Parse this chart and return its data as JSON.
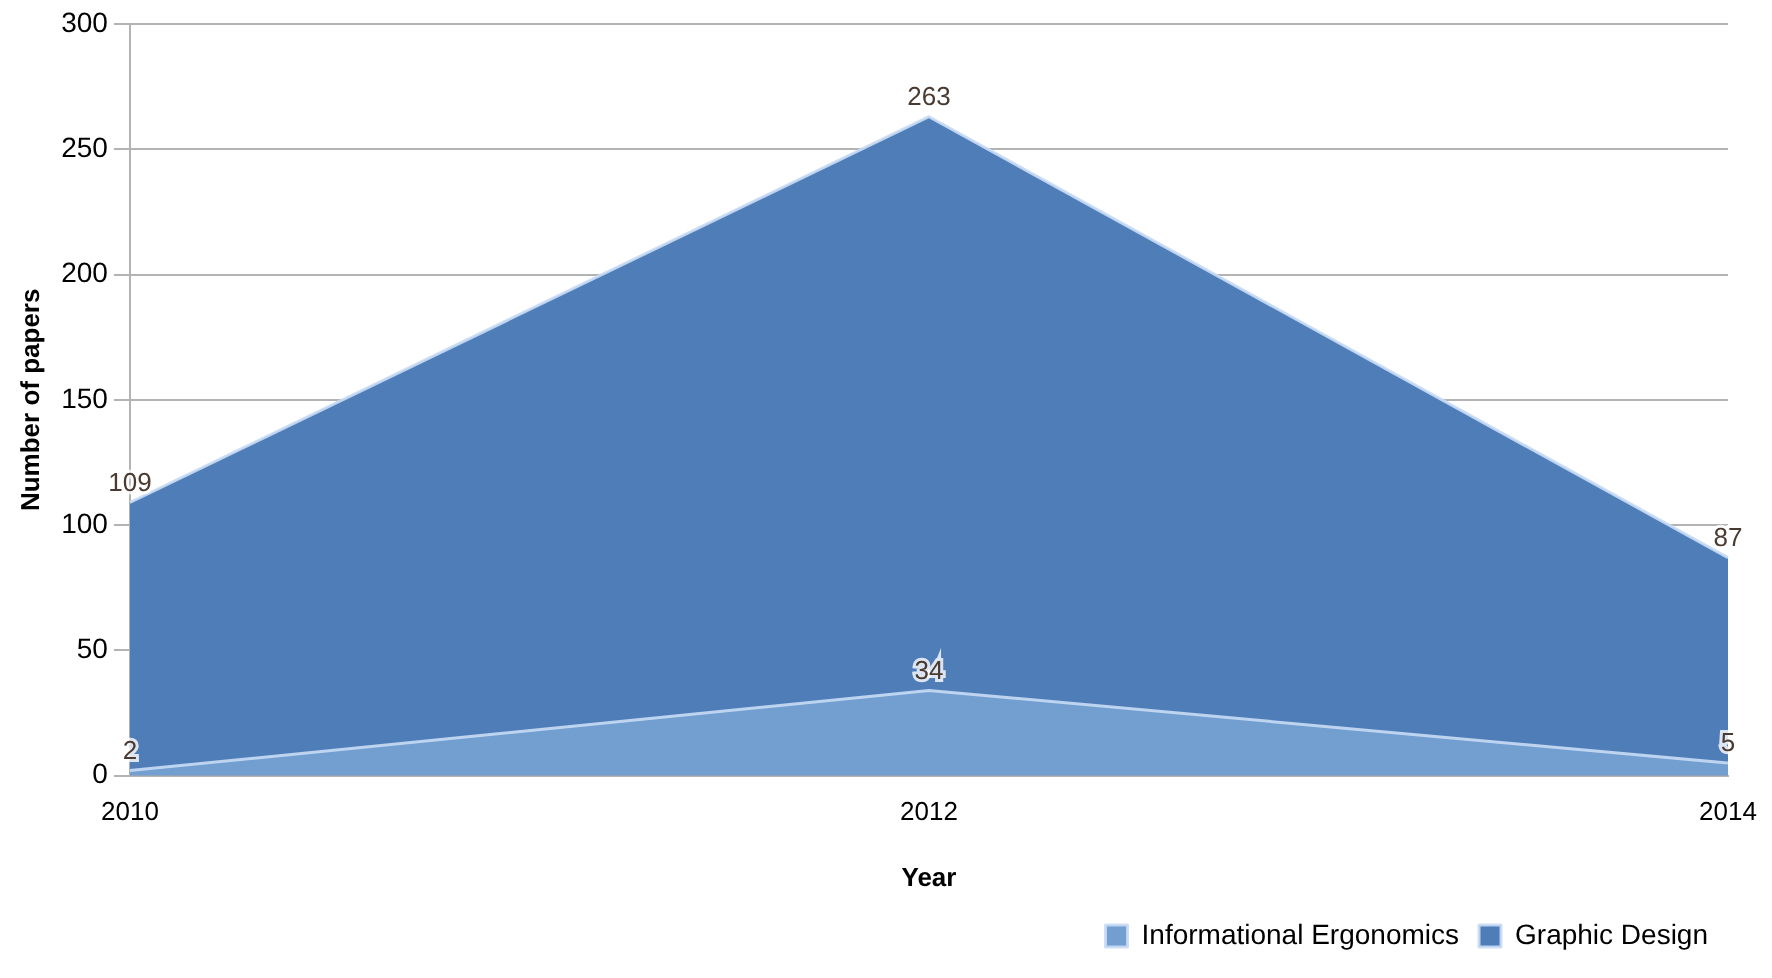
{
  "chart_data": {
    "type": "area",
    "xlabel": "Year",
    "ylabel": "Number of papers",
    "categories": [
      "2010",
      "2012",
      "2014"
    ],
    "series": [
      {
        "name": "Informational Ergonomics",
        "color": "#729fcf",
        "values": [
          2,
          34,
          5
        ]
      },
      {
        "name": "Graphic Design",
        "color": "#4f7db8",
        "values": [
          109,
          263,
          87
        ]
      }
    ],
    "ylim": [
      0,
      300
    ],
    "yticks": [
      0,
      50,
      100,
      150,
      200,
      250,
      300
    ],
    "grid": "y",
    "legend": "bottom right",
    "data_labels": true
  }
}
